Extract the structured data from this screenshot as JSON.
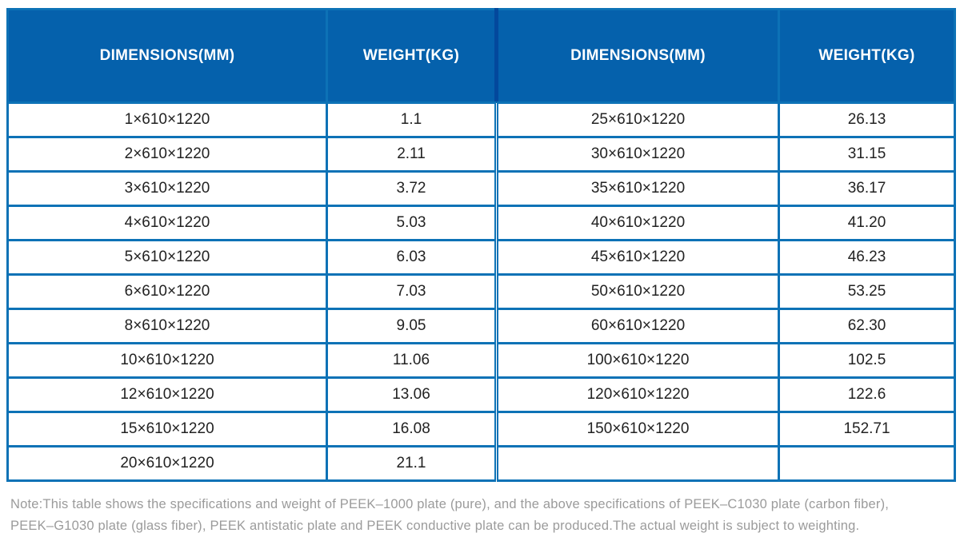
{
  "table": {
    "headers": [
      "DIMENSIONS(MM)",
      "WEIGHT(KG)",
      "DIMENSIONS(MM)",
      "WEIGHT(KG)"
    ],
    "rows": [
      [
        "1×610×1220",
        "1.1",
        "25×610×1220",
        "26.13"
      ],
      [
        "2×610×1220",
        "2.11",
        "30×610×1220",
        "31.15"
      ],
      [
        "3×610×1220",
        "3.72",
        "35×610×1220",
        "36.17"
      ],
      [
        "4×610×1220",
        "5.03",
        "40×610×1220",
        "41.20"
      ],
      [
        "5×610×1220",
        "6.03",
        "45×610×1220",
        "46.23"
      ],
      [
        "6×610×1220",
        "7.03",
        "50×610×1220",
        "53.25"
      ],
      [
        "8×610×1220",
        "9.05",
        "60×610×1220",
        "62.30"
      ],
      [
        "10×610×1220",
        "11.06",
        "100×610×1220",
        "102.5"
      ],
      [
        "12×610×1220",
        "13.06",
        "120×610×1220",
        "122.6"
      ],
      [
        "15×610×1220",
        "16.08",
        "150×610×1220",
        "152.71"
      ],
      [
        "20×610×1220",
        "21.1",
        "",
        ""
      ]
    ]
  },
  "note": {
    "line1": "Note:This table shows the specifications and weight of PEEK–1000 plate (pure), and the above specifications of PEEK–C1030 plate (carbon fiber),",
    "line2": "PEEK–G1030 plate (glass fiber), PEEK antistatic plate and PEEK conductive plate can be produced.The actual weight is subject to weighting."
  },
  "colors": {
    "header_bg": "#0561ac",
    "header_text": "#ffffff",
    "header_divider": "#03489c",
    "border": "#0d72b6",
    "text": "#222222",
    "note_text": "#9b9b9b"
  }
}
